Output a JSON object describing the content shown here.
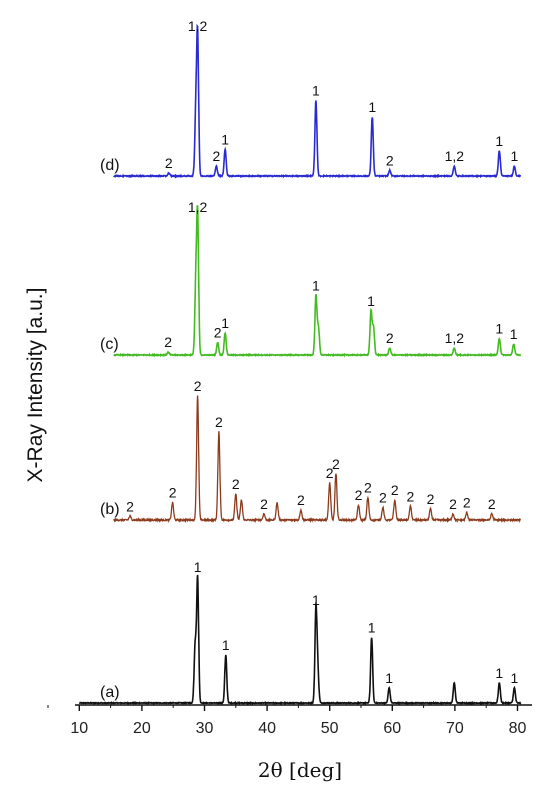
{
  "chart_data": {
    "type": "line",
    "xlabel": "2θ [deg]",
    "ylabel": "X-Ray Intensity [a.u.]",
    "xlim": [
      5,
      82
    ],
    "x_ticks": [
      "10",
      "20",
      "30",
      "40",
      "50",
      "60",
      "70",
      "80"
    ],
    "series": [
      {
        "name": "(a)",
        "color": "#111111",
        "peaks": [
          {
            "x": 28.5,
            "h": 0.45
          },
          {
            "x": 28.9,
            "h": 1.0,
            "label": "1"
          },
          {
            "x": 33.4,
            "h": 0.38,
            "label": "1"
          },
          {
            "x": 47.8,
            "h": 0.74,
            "label": "1"
          },
          {
            "x": 48.1,
            "h": 0.25
          },
          {
            "x": 56.7,
            "h": 0.52,
            "label": "1"
          },
          {
            "x": 59.5,
            "h": 0.12,
            "label": "1"
          },
          {
            "x": 69.9,
            "h": 0.16
          },
          {
            "x": 77.1,
            "h": 0.16,
            "label": "1"
          },
          {
            "x": 79.5,
            "h": 0.12,
            "label": "1"
          }
        ]
      },
      {
        "name": "(b)",
        "color": "#8b3a1c",
        "peaks": [
          {
            "x": 18.1,
            "h": 0.03,
            "label": "2"
          },
          {
            "x": 24.9,
            "h": 0.14,
            "label": "2"
          },
          {
            "x": 28.9,
            "h": 1.0,
            "label": "2"
          },
          {
            "x": 32.3,
            "h": 0.71,
            "label": "2"
          },
          {
            "x": 35.0,
            "h": 0.21,
            "label": "2"
          },
          {
            "x": 35.9,
            "h": 0.16
          },
          {
            "x": 39.5,
            "h": 0.05,
            "label": "2"
          },
          {
            "x": 41.6,
            "h": 0.14
          },
          {
            "x": 45.4,
            "h": 0.08,
            "label": "2"
          },
          {
            "x": 50.0,
            "h": 0.3,
            "label": "2"
          },
          {
            "x": 51.0,
            "h": 0.37,
            "label": "2"
          },
          {
            "x": 54.6,
            "h": 0.12,
            "label": "2"
          },
          {
            "x": 56.1,
            "h": 0.18,
            "label": "2"
          },
          {
            "x": 58.5,
            "h": 0.1,
            "label": "2"
          },
          {
            "x": 60.4,
            "h": 0.16,
            "label": "2"
          },
          {
            "x": 62.9,
            "h": 0.11,
            "label": "2"
          },
          {
            "x": 66.1,
            "h": 0.09,
            "label": "2"
          },
          {
            "x": 69.7,
            "h": 0.05,
            "label": "2"
          },
          {
            "x": 71.9,
            "h": 0.06,
            "label": "2"
          },
          {
            "x": 75.9,
            "h": 0.05,
            "label": "2"
          }
        ]
      },
      {
        "name": "(c)",
        "color": "#44bb22",
        "peaks": [
          {
            "x": 24.2,
            "h": 0.02,
            "label": "2"
          },
          {
            "x": 28.6,
            "h": 0.45
          },
          {
            "x": 28.9,
            "h": 1.0,
            "label": "1,2"
          },
          {
            "x": 32.1,
            "h": 0.09,
            "label": "2"
          },
          {
            "x": 33.3,
            "h": 0.16,
            "label": "1"
          },
          {
            "x": 47.8,
            "h": 0.43,
            "label": "1"
          },
          {
            "x": 48.2,
            "h": 0.2
          },
          {
            "x": 56.6,
            "h": 0.32,
            "label": "1"
          },
          {
            "x": 57.0,
            "h": 0.2
          },
          {
            "x": 59.6,
            "h": 0.05,
            "label": "2"
          },
          {
            "x": 69.9,
            "h": 0.05,
            "label": "1,2"
          },
          {
            "x": 77.1,
            "h": 0.12,
            "label": "1"
          },
          {
            "x": 79.4,
            "h": 0.08,
            "label": "1"
          }
        ]
      },
      {
        "name": "(d)",
        "color": "#2a2ad0",
        "peaks": [
          {
            "x": 24.3,
            "h": 0.02,
            "label": "2"
          },
          {
            "x": 28.6,
            "h": 0.4
          },
          {
            "x": 28.9,
            "h": 1.0,
            "label": "1,2"
          },
          {
            "x": 31.9,
            "h": 0.07,
            "label": "2"
          },
          {
            "x": 33.3,
            "h": 0.19,
            "label": "1"
          },
          {
            "x": 47.8,
            "h": 0.54,
            "label": "1"
          },
          {
            "x": 56.8,
            "h": 0.42,
            "label": "1"
          },
          {
            "x": 59.6,
            "h": 0.04,
            "label": "2"
          },
          {
            "x": 69.9,
            "h": 0.07,
            "label": "1,2"
          },
          {
            "x": 77.1,
            "h": 0.18,
            "label": "1"
          },
          {
            "x": 79.5,
            "h": 0.07,
            "label": "1"
          }
        ]
      }
    ]
  }
}
